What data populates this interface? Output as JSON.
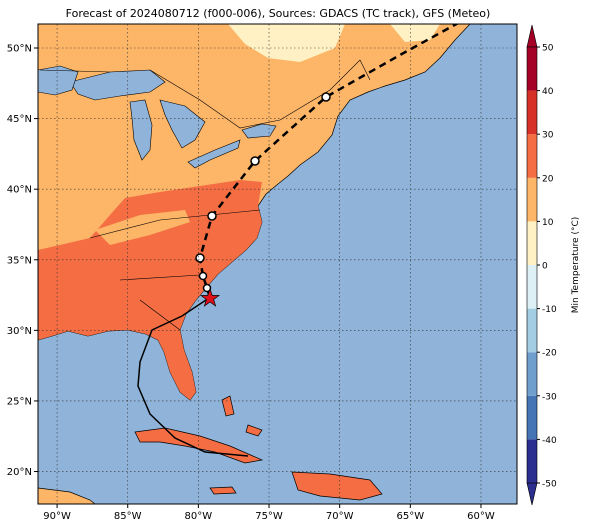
{
  "title": "Forecast of 2024080712 (f000-006), Sources: GDACS (TC track), GFS (Meteo)",
  "map": {
    "lon_range": [
      -91.35,
      -57.45
    ],
    "lat_range": [
      17.7,
      51.7
    ],
    "lon_ticks": [
      {
        "value": -90,
        "label": "90°W"
      },
      {
        "value": -85,
        "label": "85°W"
      },
      {
        "value": -80,
        "label": "80°W"
      },
      {
        "value": -75,
        "label": "75°W"
      },
      {
        "value": -70,
        "label": "70°W"
      },
      {
        "value": -65,
        "label": "65°W"
      },
      {
        "value": -60,
        "label": "60°W"
      }
    ],
    "lat_ticks": [
      {
        "value": 20,
        "label": "20°N"
      },
      {
        "value": 25,
        "label": "25°N"
      },
      {
        "value": 30,
        "label": "30°N"
      },
      {
        "value": 35,
        "label": "35°N"
      },
      {
        "value": 40,
        "label": "40°N"
      },
      {
        "value": 45,
        "label": "45°N"
      },
      {
        "value": 50,
        "label": "50°N"
      }
    ]
  },
  "colorbar": {
    "label": "Min Temperature (°C)",
    "ticks": [
      -50,
      -40,
      -30,
      -20,
      -10,
      0,
      10,
      20,
      30,
      40,
      50
    ],
    "colors": [
      "#2b2f8f",
      "#4575b4",
      "#6f9fcd",
      "#a3cde3",
      "#dcf0f5",
      "#fff1c4",
      "#fdb567",
      "#f46d43",
      "#d73027",
      "#a50026"
    ]
  }
}
